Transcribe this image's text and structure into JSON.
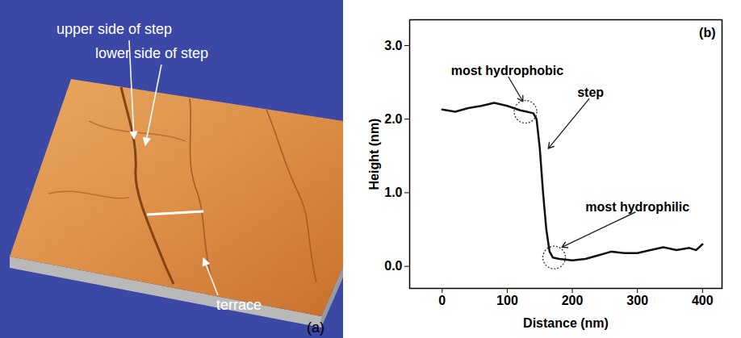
{
  "image": {
    "panel_label": "(a)",
    "annotations": [
      "upper side of step",
      "lower side of step",
      "terrace"
    ]
  },
  "chart_data": {
    "type": "line",
    "panel_label": "(b)",
    "xlabel": "Distance (nm)",
    "ylabel": "Height (nm)",
    "color": "#111111",
    "x": [
      0,
      20,
      40,
      60,
      80,
      100,
      120,
      130,
      140,
      145,
      150,
      155,
      160,
      165,
      170,
      180,
      200,
      220,
      240,
      260,
      280,
      300,
      320,
      340,
      360,
      380,
      390,
      400
    ],
    "values": [
      2.13,
      2.1,
      2.15,
      2.18,
      2.22,
      2.18,
      2.12,
      2.1,
      2.08,
      2.0,
      1.6,
      1.0,
      0.5,
      0.2,
      0.12,
      0.1,
      0.08,
      0.1,
      0.15,
      0.2,
      0.18,
      0.18,
      0.22,
      0.26,
      0.22,
      0.25,
      0.22,
      0.3
    ],
    "xlim": [
      -50,
      430
    ],
    "ylim": [
      -0.3,
      3.35
    ],
    "xticks": [
      0,
      100,
      200,
      300,
      400
    ],
    "yticks": [
      0,
      1,
      2,
      3
    ],
    "annotations": [
      {
        "text": "most hydrophobic",
        "x": 100,
        "y": 2.6,
        "target": {
          "x": 124,
          "y": 2.24
        }
      },
      {
        "text": "step",
        "x": 228,
        "y": 2.3,
        "target": {
          "x": 163,
          "y": 1.6
        }
      },
      {
        "text": "most hydrophilic",
        "x": 300,
        "y": 0.75,
        "target": {
          "x": 184,
          "y": 0.26
        }
      }
    ],
    "highlights": [
      {
        "x": 128,
        "y": 2.1
      },
      {
        "x": 172,
        "y": 0.12
      }
    ]
  }
}
